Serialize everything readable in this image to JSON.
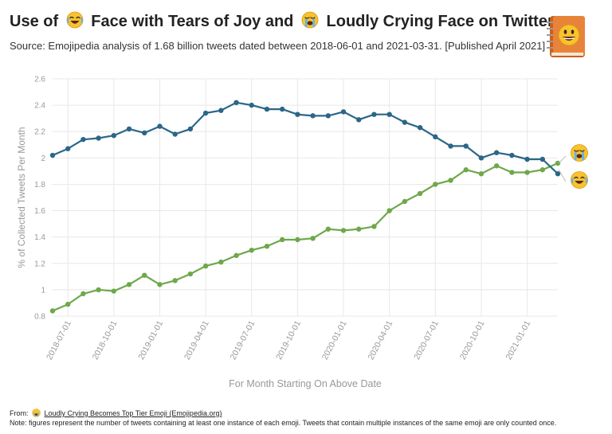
{
  "header": {
    "title_part1": "Use of",
    "title_part2": "Face with Tears of Joy and",
    "title_part3": "Loudly Crying Face on Twitter",
    "subtitle": "Source: Emojipedia analysis of 1.68 billion tweets dated between 2018-06-01 and 2021-03-31. [Published April 2021]",
    "logo_icon": "emojipedia-book-icon"
  },
  "footer": {
    "from_label": "From:",
    "link_text": "Loudly Crying Becomes Top Tier Emoji (Emojipedia.org)",
    "note": "Note: figures represent the number of tweets containing at least one instance of each emoji. Tweets that contain multiple instances of the same emoji are only counted once."
  },
  "colors": {
    "joy_series": "#2b6688",
    "crying_series": "#6ea84a",
    "grid": "#e8e8e8",
    "axis_text": "#999999"
  },
  "chart_data": {
    "type": "line",
    "title": "Use of Face with Tears of Joy and Loudly Crying Face on Twitter",
    "xlabel": "For Month Starting On Above Date",
    "ylabel": "% of Collected Tweets Per Month",
    "ylim": [
      0.8,
      2.6
    ],
    "yticks": [
      0.8,
      1,
      1.2,
      1.4,
      1.6,
      1.8,
      2,
      2.2,
      2.4,
      2.6
    ],
    "ytick_labels": [
      "0.8",
      "1",
      "1.2",
      "1.4",
      "1.6",
      "1.8",
      "2",
      "2.2",
      "2.4",
      "2.6"
    ],
    "grid": true,
    "x": [
      "2018-06-01",
      "2018-07-01",
      "2018-08-01",
      "2018-09-01",
      "2018-10-01",
      "2018-11-01",
      "2018-12-01",
      "2019-01-01",
      "2019-02-01",
      "2019-03-01",
      "2019-04-01",
      "2019-05-01",
      "2019-06-01",
      "2019-07-01",
      "2019-08-01",
      "2019-09-01",
      "2019-10-01",
      "2019-11-01",
      "2019-12-01",
      "2020-01-01",
      "2020-02-01",
      "2020-03-01",
      "2020-04-01",
      "2020-05-01",
      "2020-06-01",
      "2020-07-01",
      "2020-08-01",
      "2020-09-01",
      "2020-10-01",
      "2020-11-01",
      "2020-12-01",
      "2021-01-01",
      "2021-02-01",
      "2021-03-01"
    ],
    "xtick_labels": [
      "2018-07-01",
      "2018-10-01",
      "2019-01-01",
      "2019-04-01",
      "2019-07-01",
      "2019-10-01",
      "2020-01-01",
      "2020-04-01",
      "2020-07-01",
      "2020-10-01",
      "2021-01-01"
    ],
    "series": [
      {
        "name": "",
        "emoji": "face-with-tears-of-joy",
        "color": "#2b6688",
        "values": [
          2.02,
          2.07,
          2.14,
          2.15,
          2.17,
          2.22,
          2.19,
          2.24,
          2.18,
          2.22,
          2.34,
          2.36,
          2.42,
          2.4,
          2.37,
          2.37,
          2.33,
          2.32,
          2.32,
          2.35,
          2.29,
          2.33,
          2.33,
          2.27,
          2.23,
          2.16,
          2.09,
          2.09,
          2.0,
          2.04,
          2.02,
          1.99,
          1.99,
          1.88
        ]
      },
      {
        "name": "",
        "emoji": "loudly-crying-face",
        "color": "#6ea84a",
        "values": [
          0.84,
          0.89,
          0.97,
          1.0,
          0.99,
          1.04,
          1.11,
          1.04,
          1.07,
          1.12,
          1.18,
          1.21,
          1.26,
          1.3,
          1.33,
          1.38,
          1.38,
          1.39,
          1.46,
          1.45,
          1.46,
          1.48,
          1.6,
          1.67,
          1.73,
          1.8,
          1.83,
          1.91,
          1.88,
          1.94,
          1.89,
          1.89,
          1.91,
          1.96
        ]
      }
    ]
  }
}
